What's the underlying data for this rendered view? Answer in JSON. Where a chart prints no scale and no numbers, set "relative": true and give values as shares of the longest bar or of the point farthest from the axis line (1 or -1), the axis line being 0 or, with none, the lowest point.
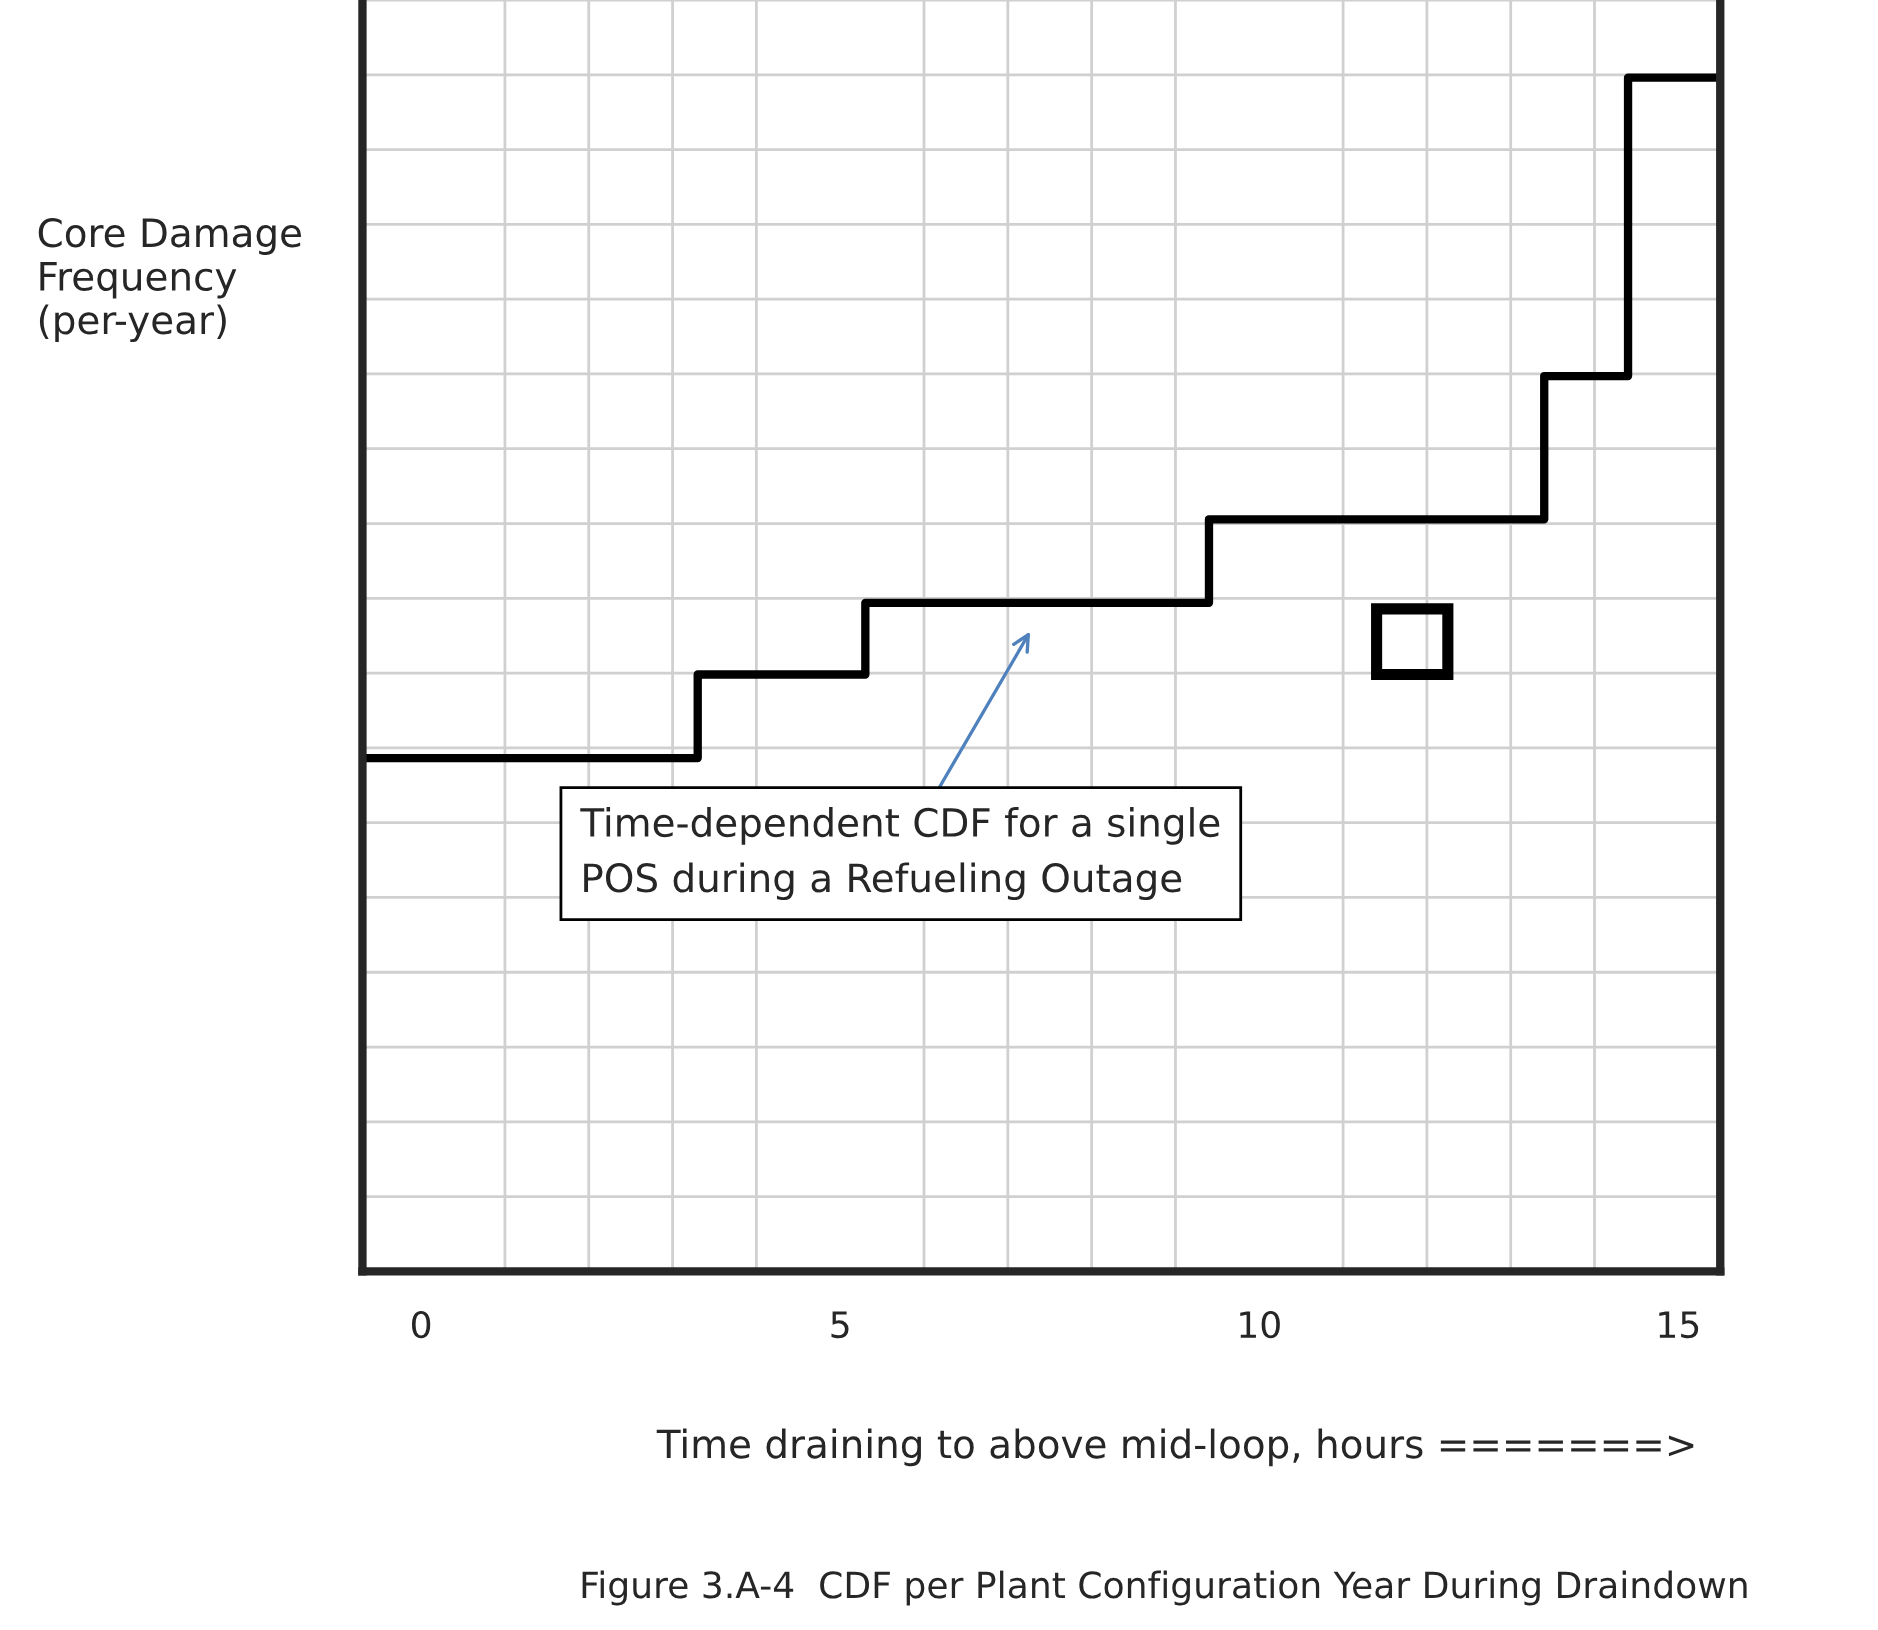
{
  "chart_data": {
    "type": "step",
    "relative": true,
    "x": [
      -0.7,
      3.3,
      5.3,
      9.4,
      13.4,
      14.4,
      15.5
    ],
    "series": [
      {
        "color": "#000000",
        "values": [
          0.43,
          0.5,
          0.56,
          0.63,
          0.75,
          1.0,
          1.0
        ]
      }
    ],
    "xlim": [
      -0.7,
      15.5
    ],
    "xticks": [
      0,
      5,
      10,
      15
    ],
    "xlabel": "Time draining to above mid-loop, hours =======>",
    "ylabel": "Core Damage\nFrequency\n(per-year)",
    "grid": true,
    "marker": "none",
    "line_style": "solid",
    "legend": false,
    "annotations": [
      "Time-dependent CDF for a single\nPOS during a Refueling Outage",
      "Figure 3.A-4  CDF per Plant Configuration Year During Draindown"
    ]
  }
}
